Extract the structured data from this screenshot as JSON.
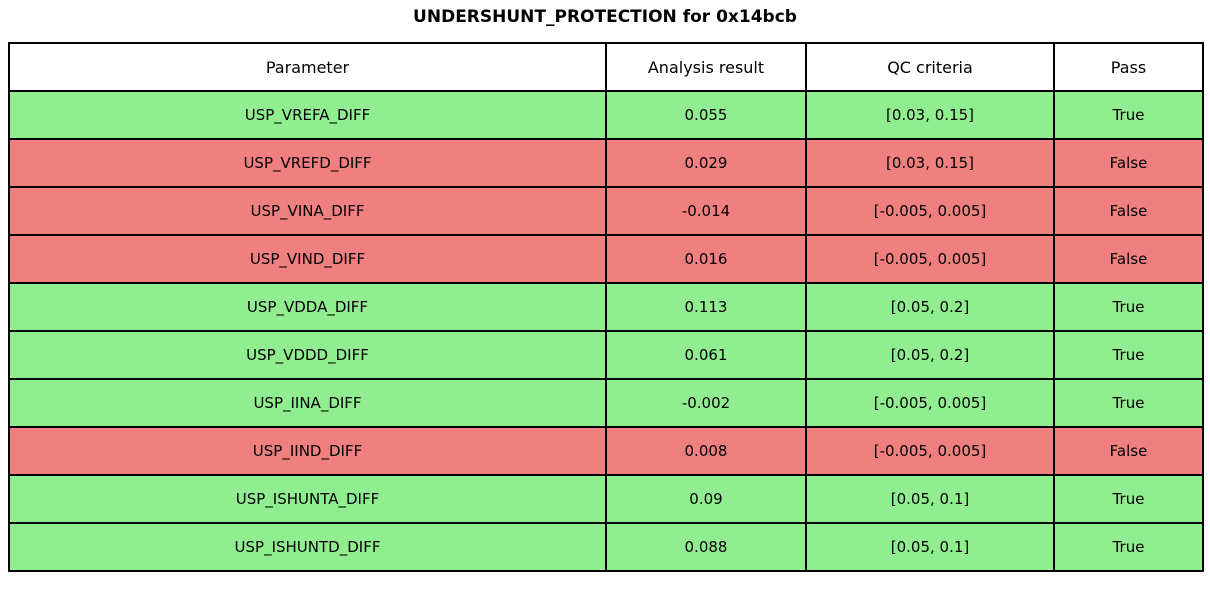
{
  "title": "UNDERSHUNT_PROTECTION for 0x14bcb",
  "colors": {
    "pass_row": "#90EE90",
    "fail_row": "#F08080",
    "border": "#000000",
    "header_bg": "#FFFFFF",
    "text": "#000000"
  },
  "table": {
    "columns": [
      "Parameter",
      "Analysis result",
      "QC criteria",
      "Pass"
    ],
    "rows": [
      {
        "parameter": "USP_VREFA_DIFF",
        "analysis_result": "0.055",
        "qc_criteria": "[0.03, 0.15]",
        "pass": "True",
        "status": "pass"
      },
      {
        "parameter": "USP_VREFD_DIFF",
        "analysis_result": "0.029",
        "qc_criteria": "[0.03, 0.15]",
        "pass": "False",
        "status": "fail"
      },
      {
        "parameter": "USP_VINA_DIFF",
        "analysis_result": "-0.014",
        "qc_criteria": "[-0.005, 0.005]",
        "pass": "False",
        "status": "fail"
      },
      {
        "parameter": "USP_VIND_DIFF",
        "analysis_result": "0.016",
        "qc_criteria": "[-0.005, 0.005]",
        "pass": "False",
        "status": "fail"
      },
      {
        "parameter": "USP_VDDA_DIFF",
        "analysis_result": "0.113",
        "qc_criteria": "[0.05, 0.2]",
        "pass": "True",
        "status": "pass"
      },
      {
        "parameter": "USP_VDDD_DIFF",
        "analysis_result": "0.061",
        "qc_criteria": "[0.05, 0.2]",
        "pass": "True",
        "status": "pass"
      },
      {
        "parameter": "USP_IINA_DIFF",
        "analysis_result": "-0.002",
        "qc_criteria": "[-0.005, 0.005]",
        "pass": "True",
        "status": "pass"
      },
      {
        "parameter": "USP_IIND_DIFF",
        "analysis_result": "0.008",
        "qc_criteria": "[-0.005, 0.005]",
        "pass": "False",
        "status": "fail"
      },
      {
        "parameter": "USP_ISHUNTA_DIFF",
        "analysis_result": "0.09",
        "qc_criteria": "[0.05, 0.1]",
        "pass": "True",
        "status": "pass"
      },
      {
        "parameter": "USP_ISHUNTD_DIFF",
        "analysis_result": "0.088",
        "qc_criteria": "[0.05, 0.1]",
        "pass": "True",
        "status": "pass"
      }
    ]
  },
  "chart_data": {
    "type": "table",
    "title": "UNDERSHUNT_PROTECTION for 0x14bcb",
    "columns": [
      "Parameter",
      "Analysis result",
      "QC criteria",
      "Pass"
    ],
    "rows": [
      [
        "USP_VREFA_DIFF",
        0.055,
        "[0.03, 0.15]",
        true
      ],
      [
        "USP_VREFD_DIFF",
        0.029,
        "[0.03, 0.15]",
        false
      ],
      [
        "USP_VINA_DIFF",
        -0.014,
        "[-0.005, 0.005]",
        false
      ],
      [
        "USP_VIND_DIFF",
        0.016,
        "[-0.005, 0.005]",
        false
      ],
      [
        "USP_VDDA_DIFF",
        0.113,
        "[0.05, 0.2]",
        true
      ],
      [
        "USP_VDDD_DIFF",
        0.061,
        "[0.05, 0.2]",
        true
      ],
      [
        "USP_IINA_DIFF",
        -0.002,
        "[-0.005, 0.005]",
        true
      ],
      [
        "USP_IIND_DIFF",
        0.008,
        "[-0.005, 0.005]",
        false
      ],
      [
        "USP_ISHUNTA_DIFF",
        0.09,
        "[0.05, 0.1]",
        true
      ],
      [
        "USP_ISHUNTD_DIFF",
        0.088,
        "[0.05, 0.1]",
        true
      ]
    ],
    "row_color_rule": "pass=lightgreen, fail=lightcoral",
    "legend_position": "none",
    "grid": "full cell borders"
  }
}
